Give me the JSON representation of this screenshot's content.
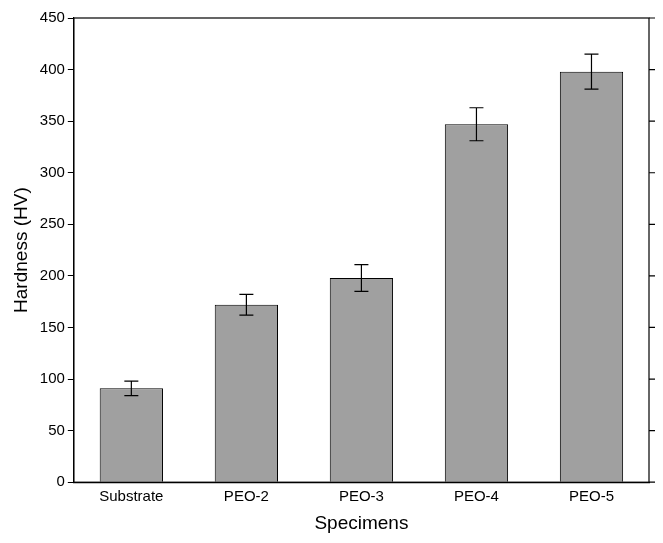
{
  "chart_data": {
    "type": "bar",
    "x_label": "Specimens",
    "y_label": "Hardness (HV)",
    "categories": [
      "Substrate",
      "PEO-2",
      "PEO-3",
      "PEO-4",
      "PEO-5"
    ],
    "values": [
      91,
      172,
      198,
      347,
      398
    ],
    "errors": [
      7,
      10,
      13,
      16,
      17
    ],
    "color": "#a0a0a0",
    "ylim": [
      0,
      450
    ],
    "yticks": [
      0,
      50,
      100,
      150,
      200,
      250,
      300,
      350,
      400,
      450
    ],
    "grid": false
  }
}
